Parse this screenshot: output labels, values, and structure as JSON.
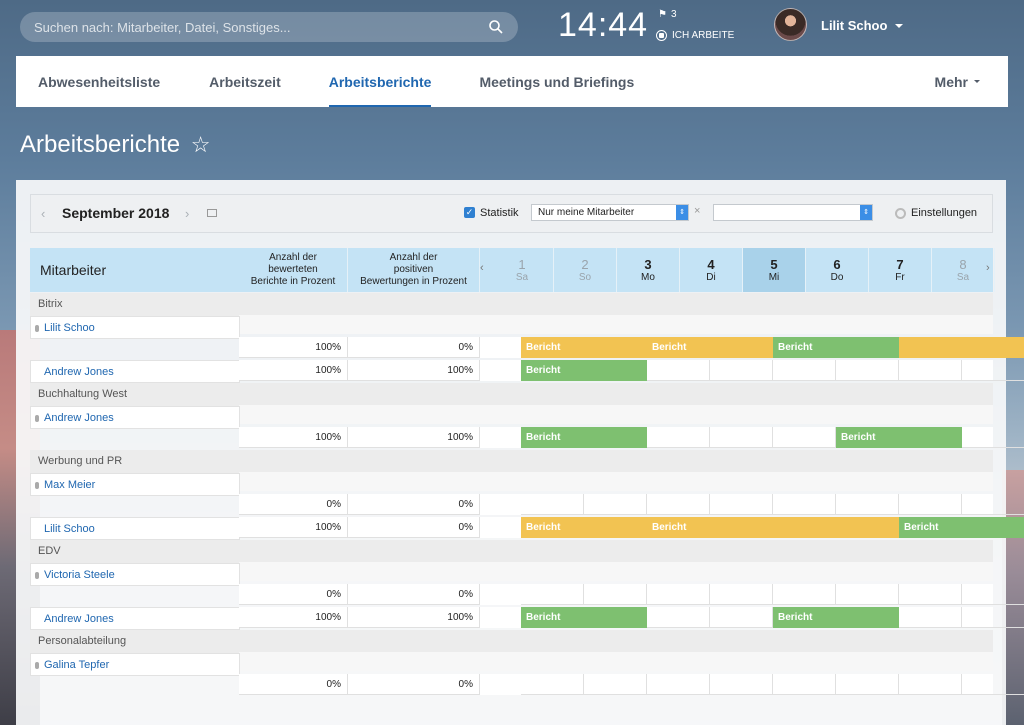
{
  "search": {
    "placeholder": "Suchen nach: Mitarbeiter, Datei, Sonstiges..."
  },
  "clock": "14:44",
  "flag_count": "3",
  "work_status": "ICH ARBEITE",
  "user": {
    "name": "Lilit Schoo"
  },
  "tabs": [
    {
      "label": "Abwesenheitsliste",
      "active": false
    },
    {
      "label": "Arbeitszeit",
      "active": false
    },
    {
      "label": "Arbeitsberichte",
      "active": true
    },
    {
      "label": "Meetings und Briefings",
      "active": false
    }
  ],
  "tab_more": "Mehr",
  "page_title": "Arbeitsberichte",
  "toolbar": {
    "month": "September 2018",
    "statistik": "Statistik",
    "filter": "Nur meine Mitarbeiter",
    "clear": "×",
    "settings": "Einstellungen"
  },
  "grid": {
    "employee_header": "Mitarbeiter",
    "col1_header": [
      "Anzahl der",
      "bewerteten",
      "Berichte in Prozent"
    ],
    "col2_header": [
      "Anzahl der",
      "positiven",
      "Bewertungen in Prozent"
    ],
    "days": [
      {
        "num": "1",
        "name": "Sa",
        "weekend": true
      },
      {
        "num": "2",
        "name": "So",
        "weekend": true
      },
      {
        "num": "3",
        "name": "Mo",
        "weekend": false
      },
      {
        "num": "4",
        "name": "Di",
        "weekend": false
      },
      {
        "num": "5",
        "name": "Mi",
        "weekend": false,
        "today": true
      },
      {
        "num": "6",
        "name": "Do",
        "weekend": false
      },
      {
        "num": "7",
        "name": "Fr",
        "weekend": false
      },
      {
        "num": "8",
        "name": "Sa",
        "weekend": true
      }
    ],
    "groups": [
      {
        "name": "Bitrix",
        "rows": [
          {
            "name": "Lilit Schoo",
            "head": true,
            "pct1": "100%",
            "pct2": "0%",
            "bars": [
              {
                "start": 0,
                "span": 2,
                "color": "yellow",
                "label": "Bericht"
              },
              {
                "start": 2,
                "span": 2,
                "color": "yellow",
                "label": "Bericht"
              },
              {
                "start": 4,
                "span": 2,
                "color": "green",
                "label": "Bericht"
              },
              {
                "start": 6,
                "span": 2,
                "color": "yellow",
                "label": ""
              }
            ]
          },
          {
            "name": "Andrew Jones",
            "head": false,
            "pct1": "100%",
            "pct2": "100%",
            "bars": [
              {
                "start": 0,
                "span": 2,
                "color": "green",
                "label": "Bericht"
              }
            ]
          }
        ]
      },
      {
        "name": "Buchhaltung West",
        "rows": [
          {
            "name": "Andrew Jones",
            "head": true,
            "pct1": "100%",
            "pct2": "100%",
            "bars": [
              {
                "start": 0,
                "span": 2,
                "color": "green",
                "label": "Bericht"
              },
              {
                "start": 5,
                "span": 2,
                "color": "green",
                "label": "Bericht"
              }
            ]
          }
        ]
      },
      {
        "name": "Werbung und PR",
        "rows": [
          {
            "name": "Max Meier",
            "head": true,
            "pct1": "0%",
            "pct2": "0%",
            "bars": []
          },
          {
            "name": "Lilit Schoo",
            "head": false,
            "pct1": "100%",
            "pct2": "0%",
            "bars": [
              {
                "start": 0,
                "span": 2,
                "color": "yellow",
                "label": "Bericht"
              },
              {
                "start": 2,
                "span": 4,
                "color": "yellow",
                "label": "Bericht"
              },
              {
                "start": 6,
                "span": 2,
                "color": "green",
                "label": "Bericht"
              }
            ]
          }
        ]
      },
      {
        "name": "EDV",
        "rows": [
          {
            "name": "Victoria Steele",
            "head": true,
            "pct1": "0%",
            "pct2": "0%",
            "bars": []
          },
          {
            "name": "Andrew Jones",
            "head": false,
            "pct1": "100%",
            "pct2": "100%",
            "bars": [
              {
                "start": 0,
                "span": 2,
                "color": "green",
                "label": "Bericht"
              },
              {
                "start": 4,
                "span": 2,
                "color": "green",
                "label": "Bericht"
              }
            ]
          }
        ]
      },
      {
        "name": "Personalabteilung",
        "rows": [
          {
            "name": "Galina Tepfer",
            "head": true,
            "pct1": "0%",
            "pct2": "0%",
            "bars": []
          }
        ]
      }
    ]
  },
  "colors": {
    "accent": "#2067b0",
    "green": "#7ec070",
    "yellow": "#f2c352",
    "header": "#c4e3f5"
  }
}
